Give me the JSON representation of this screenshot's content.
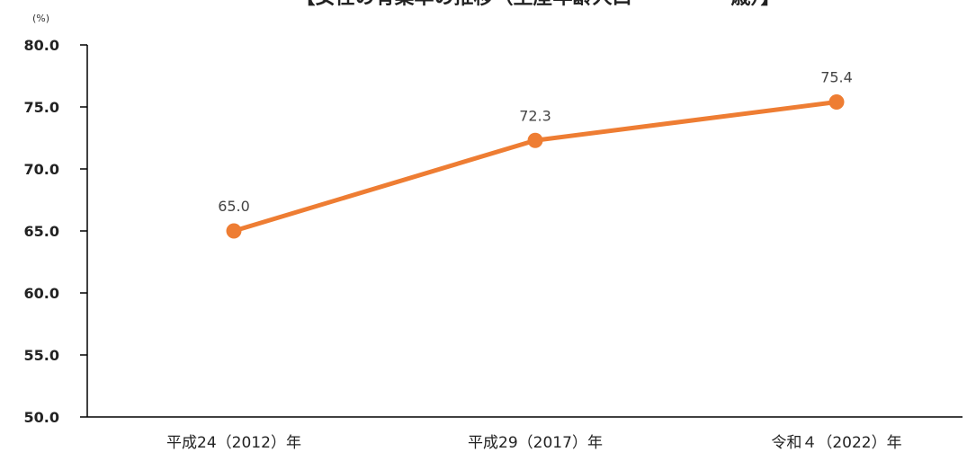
{
  "chart_data": {
    "type": "line",
    "title": "【女性の有業率の推移（生産年齢人口　　　　　歳）】",
    "unit": "(%)",
    "categories": [
      "平成24（2012）年",
      "平成29（2017）年",
      "令和４（2022）年"
    ],
    "series": [
      {
        "values": [
          65.0,
          72.3,
          75.4
        ],
        "data_labels": [
          "65.0",
          "72.3",
          "75.4"
        ]
      }
    ],
    "ylim": [
      50.0,
      80.0
    ],
    "yticks": [
      50.0,
      55.0,
      60.0,
      65.0,
      70.0,
      75.0,
      80.0
    ],
    "ytick_labels": [
      "50.0",
      "55.0",
      "60.0",
      "65.0",
      "70.0",
      "75.0",
      "80.0"
    ],
    "grid": false,
    "line_color": "#ee7d33"
  }
}
